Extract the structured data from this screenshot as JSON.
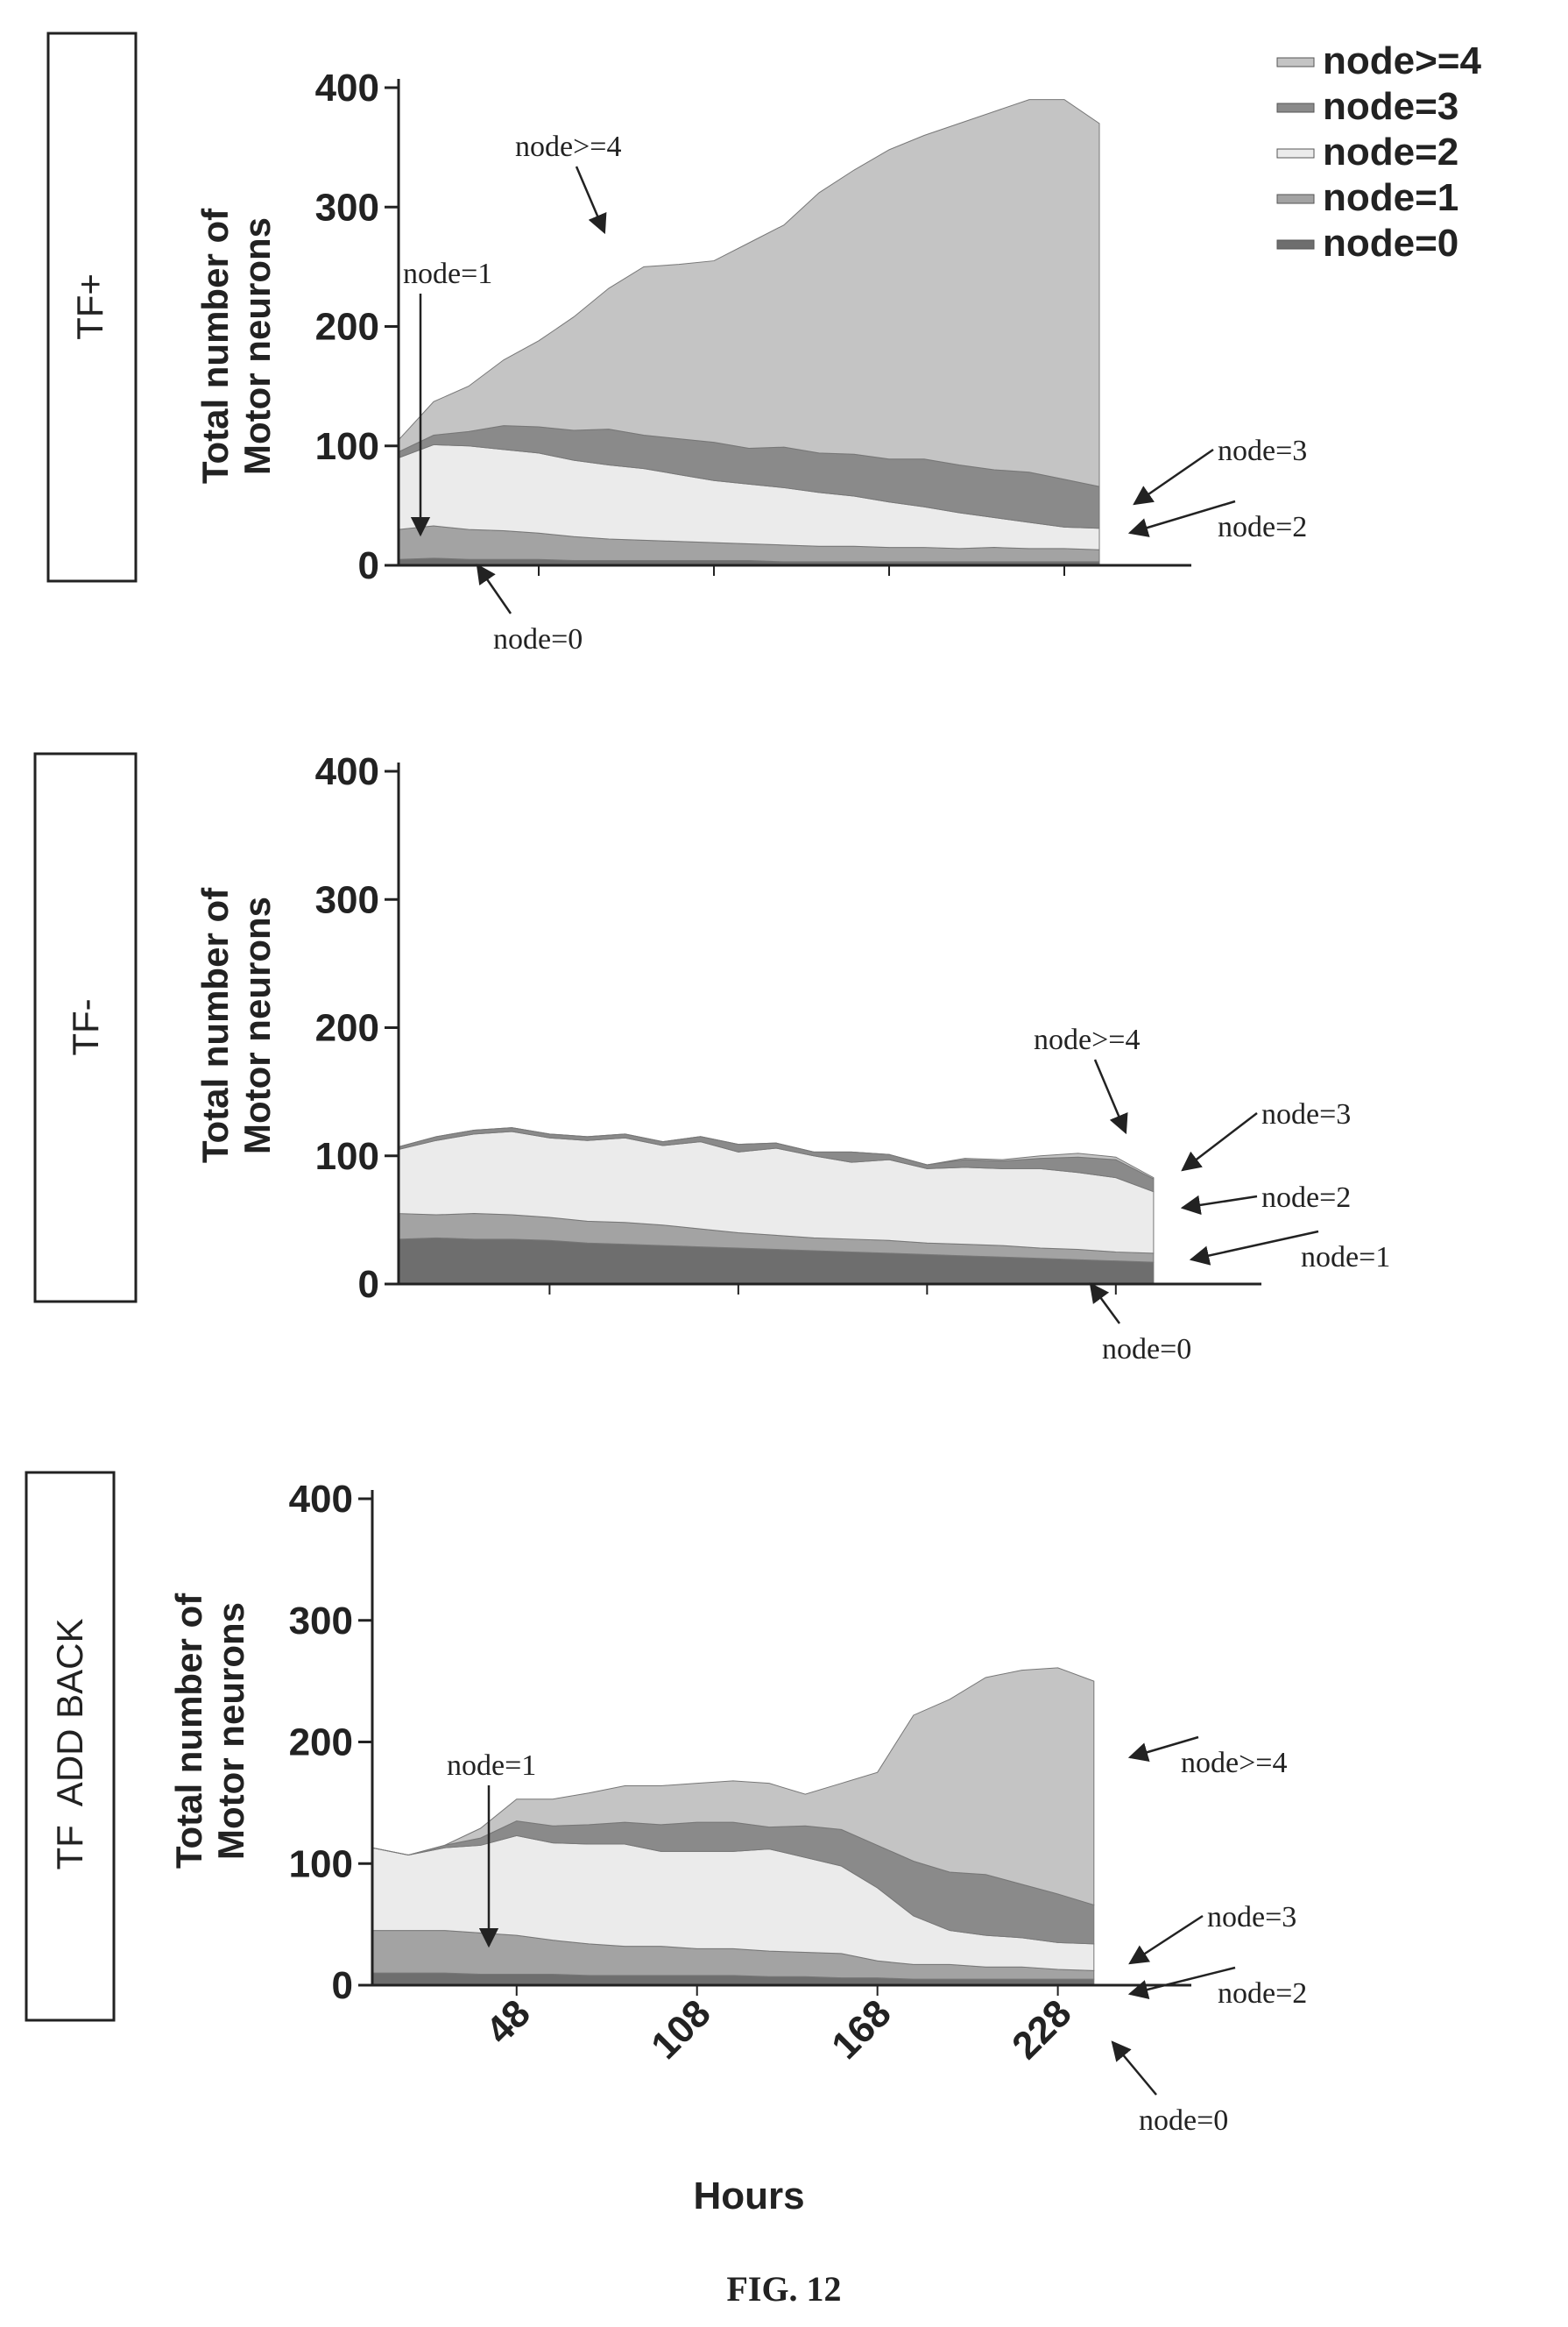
{
  "figure_caption": "FIG. 12",
  "legend": [
    {
      "label": "node>=4",
      "color": "#c4c4c4"
    },
    {
      "label": "node=3",
      "color": "#8a8a8a"
    },
    {
      "label": "node=2",
      "color": "#ebebeb"
    },
    {
      "label": "node=1",
      "color": "#a3a3a3"
    },
    {
      "label": "node=0",
      "color": "#6e6e6e"
    }
  ],
  "chart_data": [
    {
      "type": "area",
      "stacked": true,
      "panel_label": "TF+",
      "ylabel_line1": "Total number of",
      "ylabel_line2": "Motor neurons",
      "ylim": [
        0,
        400
      ],
      "yticks": [
        "0",
        "100",
        "200",
        "300",
        "400"
      ],
      "xlim": [
        0,
        252
      ],
      "xticks": [],
      "x": [
        0,
        12,
        24,
        36,
        48,
        60,
        72,
        84,
        96,
        108,
        120,
        132,
        144,
        156,
        168,
        180,
        192,
        204,
        216,
        228,
        240
      ],
      "series": [
        {
          "name": "node=0",
          "values": [
            5,
            6,
            5,
            5,
            5,
            4,
            4,
            4,
            4,
            4,
            4,
            3,
            3,
            3,
            3,
            3,
            3,
            3,
            3,
            3,
            3
          ]
        },
        {
          "name": "node=1",
          "values": [
            25,
            27,
            25,
            24,
            22,
            20,
            18,
            17,
            16,
            15,
            14,
            14,
            13,
            13,
            12,
            12,
            11,
            12,
            11,
            11,
            10
          ]
        },
        {
          "name": "node=2",
          "values": [
            60,
            68,
            70,
            68,
            67,
            64,
            62,
            60,
            56,
            52,
            50,
            48,
            45,
            42,
            38,
            34,
            30,
            25,
            22,
            18,
            18
          ]
        },
        {
          "name": "node=3",
          "values": [
            5,
            8,
            12,
            20,
            22,
            25,
            30,
            28,
            30,
            32,
            30,
            34,
            33,
            35,
            36,
            40,
            40,
            40,
            42,
            40,
            35
          ]
        },
        {
          "name": "node>=4",
          "values": [
            10,
            28,
            38,
            55,
            72,
            95,
            118,
            141,
            146,
            152,
            172,
            186,
            218,
            238,
            259,
            271,
            286,
            300,
            312,
            318,
            304
          ]
        }
      ],
      "annotations": [
        {
          "text": "node>=4",
          "series": "node>=4"
        },
        {
          "text": "node=1",
          "series": "node=1"
        },
        {
          "text": "node=3",
          "series": "node=3"
        },
        {
          "text": "node=2",
          "series": "node=2"
        },
        {
          "text": "node=0",
          "series": "node=0"
        }
      ]
    },
    {
      "type": "area",
      "stacked": true,
      "panel_label": "TF-",
      "ylabel_line1": "Total number of",
      "ylabel_line2": "Motor neurons",
      "ylim": [
        0,
        400
      ],
      "yticks": [
        "0",
        "100",
        "200",
        "300",
        "400"
      ],
      "xlim": [
        0,
        252
      ],
      "xticks": [],
      "x": [
        0,
        12,
        24,
        36,
        48,
        60,
        72,
        84,
        96,
        108,
        120,
        132,
        144,
        156,
        168,
        180,
        192,
        204,
        216,
        228,
        240
      ],
      "series": [
        {
          "name": "node=0",
          "values": [
            35,
            36,
            35,
            35,
            34,
            32,
            31,
            30,
            29,
            28,
            27,
            26,
            25,
            24,
            23,
            22,
            21,
            20,
            19,
            18,
            17
          ]
        },
        {
          "name": "node=1",
          "values": [
            20,
            18,
            20,
            19,
            18,
            17,
            17,
            16,
            14,
            12,
            11,
            10,
            10,
            10,
            9,
            9,
            9,
            8,
            8,
            7,
            7
          ]
        },
        {
          "name": "node=2",
          "values": [
            50,
            58,
            62,
            65,
            62,
            63,
            66,
            62,
            68,
            63,
            68,
            64,
            60,
            63,
            58,
            60,
            60,
            62,
            60,
            58,
            48
          ]
        },
        {
          "name": "node=3",
          "values": [
            2,
            3,
            3,
            3,
            3,
            3,
            3,
            3,
            4,
            6,
            4,
            3,
            8,
            4,
            3,
            6,
            6,
            8,
            12,
            14,
            10
          ]
        },
        {
          "name": "node>=4",
          "values": [
            0,
            0,
            0,
            0,
            0,
            0,
            0,
            0,
            0,
            0,
            0,
            0,
            0,
            0,
            0,
            1,
            1,
            2,
            3,
            2,
            1
          ]
        }
      ],
      "annotations": [
        {
          "text": "node>=4",
          "series": "node>=4"
        },
        {
          "text": "node=3",
          "series": "node=3"
        },
        {
          "text": "node=2",
          "series": "node=2"
        },
        {
          "text": "node=1",
          "series": "node=1"
        },
        {
          "text": "node=0",
          "series": "node=0"
        }
      ]
    },
    {
      "type": "area",
      "stacked": true,
      "panel_label": "TF  ADD BACK",
      "ylabel_line1": "Total number of",
      "ylabel_line2": "Motor neurons",
      "xlabel": "Hours",
      "ylim": [
        0,
        400
      ],
      "yticks": [
        "0",
        "100",
        "200",
        "300",
        "400"
      ],
      "xlim": [
        0,
        252
      ],
      "xticks": [
        "48",
        "108",
        "168",
        "228"
      ],
      "xtick_values": [
        48,
        108,
        168,
        228
      ],
      "x": [
        0,
        12,
        24,
        36,
        48,
        60,
        72,
        84,
        96,
        108,
        120,
        132,
        144,
        156,
        168,
        180,
        192,
        204,
        216,
        228,
        240
      ],
      "series": [
        {
          "name": "node=0",
          "values": [
            10,
            10,
            10,
            9,
            9,
            9,
            8,
            8,
            8,
            8,
            8,
            7,
            7,
            6,
            6,
            5,
            5,
            5,
            5,
            5,
            5
          ]
        },
        {
          "name": "node=1",
          "values": [
            35,
            35,
            35,
            34,
            32,
            28,
            26,
            24,
            24,
            22,
            22,
            21,
            20,
            20,
            14,
            12,
            12,
            10,
            10,
            8,
            7
          ]
        },
        {
          "name": "node=2",
          "values": [
            68,
            62,
            68,
            72,
            82,
            80,
            82,
            84,
            78,
            80,
            80,
            84,
            78,
            72,
            60,
            40,
            28,
            26,
            24,
            22,
            22
          ]
        },
        {
          "name": "node=3",
          "values": [
            0,
            0,
            2,
            6,
            12,
            14,
            16,
            18,
            22,
            24,
            24,
            18,
            26,
            30,
            35,
            45,
            48,
            50,
            44,
            40,
            32
          ]
        },
        {
          "name": "node>=4",
          "values": [
            0,
            0,
            0,
            8,
            18,
            22,
            26,
            30,
            32,
            32,
            34,
            36,
            26,
            38,
            60,
            120,
            142,
            162,
            176,
            186,
            184
          ]
        }
      ],
      "annotations": [
        {
          "text": "node=1",
          "series": "node=1"
        },
        {
          "text": "node>=4",
          "series": "node>=4"
        },
        {
          "text": "node=3",
          "series": "node=3"
        },
        {
          "text": "node=2",
          "series": "node=2"
        },
        {
          "text": "node=0",
          "series": "node=0"
        }
      ]
    }
  ]
}
